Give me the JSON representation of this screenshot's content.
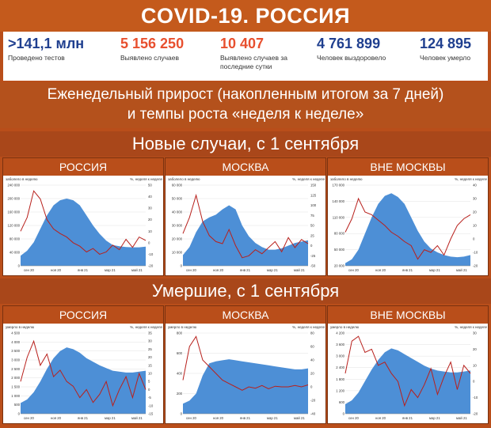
{
  "header": {
    "title": "COVID-19. РОССИЯ"
  },
  "stats": [
    {
      "value": ">141,1 млн",
      "label": "Проведено тестов",
      "color": "#1f3f8f"
    },
    {
      "value": "5 156 250",
      "label": "Выявлено случаев",
      "color": "#e8502f"
    },
    {
      "value": "10 407",
      "label": "Выявлено случаев за последние сутки",
      "color": "#e8502f"
    },
    {
      "value": "4 761 899",
      "label": "Человек выздоровело",
      "color": "#1f3f8f"
    },
    {
      "value": "124 895",
      "label": "Человек умерло",
      "color": "#1f3f8f"
    }
  ],
  "weekly": {
    "line1": "Еженедельный прирост (накопленным итогом за 7 дней)",
    "line2": "и темпы роста «неделя к неделе»"
  },
  "sections": {
    "cases": "Новые случаи, с 1 сентября",
    "deaths": "Умершие, с 1 сентября"
  },
  "colors": {
    "area": "#4d8fd6",
    "line": "#b8201c"
  },
  "chart_data": [
    {
      "type": "area",
      "title": "РОССИЯ",
      "ylabel_left": "заболело в неделю",
      "ylabel_right": "%, неделя к неделе",
      "left_ticks": [
        "240 000",
        "200 000",
        "160 000",
        "120 000",
        "80 000",
        "40 000",
        "0"
      ],
      "right_ticks": [
        "50",
        "40",
        "30",
        "20",
        "10",
        "0",
        "-10",
        "-20"
      ],
      "ylim_left": [
        0,
        240000
      ],
      "ylim_right": [
        -20,
        50
      ],
      "x_ticks": [
        "сен 20",
        "ноя 20",
        "янв 21",
        "мар 21",
        "май 21"
      ],
      "series": [
        {
          "kind": "area",
          "values": [
            30000,
            45000,
            70000,
            110000,
            150000,
            180000,
            195000,
            200000,
            195000,
            180000,
            150000,
            120000,
            95000,
            75000,
            62000,
            58000,
            56000,
            55000,
            55000,
            57000
          ]
        },
        {
          "kind": "line",
          "values": [
            10,
            22,
            45,
            38,
            20,
            12,
            8,
            5,
            0,
            -3,
            -8,
            -5,
            -10,
            -8,
            -2,
            -6,
            3,
            -4,
            5,
            2
          ]
        }
      ]
    },
    {
      "type": "area",
      "title": "МОСКВА",
      "ylabel_left": "заболело в неделю",
      "ylabel_right": "%, неделя к неделе",
      "left_ticks": [
        "60 000",
        "50 000",
        "40 000",
        "30 000",
        "20 000",
        "10 000",
        "0"
      ],
      "right_ticks": [
        "150",
        "125",
        "100",
        "75",
        "50",
        "25",
        "0",
        "-25",
        "-50"
      ],
      "ylim_left": [
        0,
        60000
      ],
      "ylim_right": [
        -50,
        150
      ],
      "x_ticks": [
        "сен 20",
        "ноя 20",
        "янв 21",
        "мар 21",
        "май 21"
      ],
      "series": [
        {
          "kind": "area",
          "values": [
            8000,
            14000,
            25000,
            33000,
            36000,
            38000,
            42000,
            45000,
            42000,
            30000,
            22000,
            17000,
            14000,
            12000,
            12000,
            13000,
            15000,
            17000,
            18000,
            19000
          ]
        },
        {
          "kind": "line",
          "values": [
            30,
            70,
            125,
            60,
            25,
            10,
            5,
            40,
            0,
            -30,
            -25,
            -10,
            -20,
            -5,
            10,
            -15,
            20,
            -5,
            15,
            5
          ]
        }
      ]
    },
    {
      "type": "area",
      "title": "ВНЕ МОСКВЫ",
      "ylabel_left": "заболело в неделю",
      "ylabel_right": "%, неделя к неделе",
      "left_ticks": [
        "170 000",
        "140 000",
        "110 000",
        "80 000",
        "50 000",
        "20 000"
      ],
      "right_ticks": [
        "40",
        "30",
        "20",
        "10",
        "0",
        "-10",
        "-20"
      ],
      "ylim_left": [
        20000,
        170000
      ],
      "ylim_right": [
        -20,
        40
      ],
      "x_ticks": [
        "сен 20",
        "ноя 20",
        "янв 21",
        "мар 21",
        "май 21"
      ],
      "series": [
        {
          "kind": "area",
          "values": [
            25000,
            32000,
            50000,
            80000,
            110000,
            135000,
            150000,
            155000,
            148000,
            135000,
            110000,
            85000,
            65000,
            52000,
            45000,
            40000,
            37000,
            36000,
            37000,
            40000
          ]
        },
        {
          "kind": "line",
          "values": [
            5,
            15,
            30,
            20,
            18,
            14,
            10,
            5,
            2,
            -2,
            -5,
            -15,
            -8,
            -10,
            -5,
            -12,
            0,
            10,
            15,
            18
          ]
        }
      ]
    },
    {
      "type": "area",
      "title": "РОССИЯ",
      "ylabel_left": "умерло в неделю",
      "ylabel_right": "%, неделя к неделе",
      "left_ticks": [
        "4 500",
        "4 000",
        "3 500",
        "3 000",
        "2 500",
        "2 000",
        "1 500",
        "1 000",
        "500",
        "0"
      ],
      "right_ticks": [
        "35",
        "30",
        "25",
        "20",
        "15",
        "10",
        "5",
        "0",
        "-5",
        "-10",
        "-15"
      ],
      "ylim_left": [
        0,
        4500
      ],
      "ylim_right": [
        -15,
        35
      ],
      "x_ticks": [
        "сен 20",
        "ноя 20",
        "янв 21",
        "мар 21",
        "май 21"
      ],
      "series": [
        {
          "kind": "area",
          "values": [
            600,
            800,
            1200,
            1800,
            2500,
            3100,
            3500,
            3700,
            3600,
            3400,
            3100,
            2900,
            2700,
            2550,
            2400,
            2350,
            2300,
            2300,
            2350,
            2400
          ]
        },
        {
          "kind": "line",
          "values": [
            5,
            20,
            30,
            15,
            22,
            8,
            12,
            5,
            2,
            -5,
            0,
            -8,
            -3,
            5,
            -10,
            0,
            8,
            -5,
            10,
            0
          ]
        }
      ]
    },
    {
      "type": "area",
      "title": "МОСКВА",
      "ylabel_left": "умерло в неделю",
      "ylabel_right": "%, неделя к неделе",
      "left_ticks": [
        "800",
        "600",
        "400",
        "200",
        "0"
      ],
      "right_ticks": [
        "80",
        "60",
        "40",
        "20",
        "0",
        "-20",
        "-40"
      ],
      "ylim_left": [
        0,
        800
      ],
      "ylim_right": [
        -40,
        80
      ],
      "x_ticks": [
        "сен 20",
        "ноя 20",
        "янв 21",
        "мар 21",
        "май 21"
      ],
      "series": [
        {
          "kind": "area",
          "values": [
            100,
            130,
            200,
            380,
            500,
            520,
            530,
            540,
            530,
            520,
            510,
            500,
            490,
            480,
            470,
            460,
            450,
            440,
            440,
            450
          ]
        },
        {
          "kind": "line",
          "values": [
            10,
            60,
            75,
            40,
            30,
            20,
            10,
            5,
            0,
            -5,
            0,
            -2,
            2,
            -3,
            1,
            0,
            0,
            2,
            0,
            3
          ]
        }
      ]
    },
    {
      "type": "area",
      "title": "ВНЕ МОСКВЫ",
      "ylabel_left": "умерло в неделю",
      "ylabel_right": "%, неделя к неделе",
      "left_ticks": [
        "4 200",
        "3 600",
        "3 000",
        "2 400",
        "1 800",
        "1 200",
        "600",
        "0"
      ],
      "right_ticks": [
        "30",
        "20",
        "10",
        "0",
        "-10",
        "-20"
      ],
      "ylim_left": [
        0,
        4200
      ],
      "ylim_right": [
        -20,
        30
      ],
      "x_ticks": [
        "сен 20",
        "ноя 20",
        "янв 21",
        "мар 21",
        "май 21"
      ],
      "series": [
        {
          "kind": "area",
          "values": [
            500,
            700,
            1100,
            1700,
            2300,
            2800,
            3200,
            3400,
            3300,
            3100,
            2900,
            2700,
            2500,
            2350,
            2250,
            2200,
            2150,
            2150,
            2200,
            2250
          ]
        },
        {
          "kind": "line",
          "values": [
            5,
            25,
            28,
            18,
            20,
            10,
            12,
            5,
            0,
            -15,
            -5,
            -10,
            -2,
            8,
            -8,
            3,
            12,
            -5,
            10,
            5
          ]
        }
      ]
    }
  ]
}
